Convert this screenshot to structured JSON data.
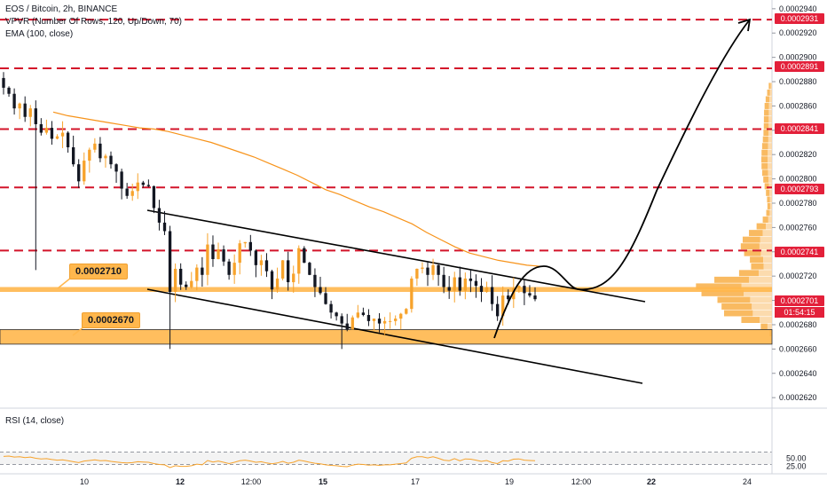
{
  "header": {
    "symbol_line": "EOS / Bitcoin, 2h, BINANCE",
    "vpvr_line": "VPVR (Number Of Rows, 120, Up/Down, 70)",
    "ema_line": "EMA (100, close)"
  },
  "labels": {
    "level_upper": "0.0002710",
    "level_lower": "0.0002670"
  },
  "rsi": {
    "legend": "RSI (14, close)",
    "ticks": [
      "50.00",
      "25.00"
    ]
  },
  "price_axis": {
    "ticks": [
      "0.0002940",
      "0.0002920",
      "0.0002900",
      "0.0002880",
      "0.0002860",
      "0.0002840",
      "0.0002820",
      "0.0002800",
      "0.0002780",
      "0.0002760",
      "0.0002740",
      "0.0002720",
      "0.0002700",
      "0.0002680",
      "0.0002660",
      "0.0002640",
      "0.0002620"
    ],
    "tags": [
      "0.0002931",
      "0.0002891",
      "0.0002841",
      "0.0002793",
      "0.0002741",
      "0.0002701"
    ],
    "countdown": "01:54:15"
  },
  "time_axis": {
    "ticks": [
      "10",
      "12",
      "12:00",
      "15",
      "17",
      "19",
      "12:00",
      "22",
      "24"
    ]
  },
  "colors": {
    "up": "#f7a32c",
    "down": "#131722",
    "ema": "#f7931a",
    "dashed": "#d3142a",
    "zone": "#ffb74d",
    "rsi": "#f7a32c",
    "tag": "#e3203a"
  },
  "chart_data": {
    "type": "candlestick",
    "title": "EOS / Bitcoin, 2h, BINANCE",
    "x_ticks": [
      "10",
      "12",
      "12:00",
      "15",
      "17",
      "19",
      "12:00",
      "22",
      "24"
    ],
    "ylim": [
      0.0002615,
      0.0002945
    ],
    "resistance_levels": [
      0.0002931,
      0.0002891,
      0.0002841,
      0.0002793,
      0.0002741
    ],
    "zones": [
      {
        "label": "0.0002710",
        "low": 0.0002707,
        "high": 0.0002711
      },
      {
        "label": "0.0002670",
        "low": 0.0002664,
        "high": 0.0002676
      }
    ],
    "last_price": 0.0002701,
    "close_series": [
      0.0002875,
      0.000287,
      0.0002858,
      0.0002862,
      0.0002851,
      0.0002858,
      0.0002845,
      0.0002838,
      0.0002842,
      0.0002833,
      0.0002835,
      0.0002838,
      0.0002826,
      0.0002812,
      0.0002798,
      0.0002815,
      0.0002824,
      0.0002829,
      0.0002817,
      0.0002819,
      0.0002812,
      0.0002806,
      0.0002792,
      0.0002786,
      0.000279,
      0.0002797,
      0.0002795,
      0.0002794,
      0.0002776,
      0.0002764,
      0.0002757,
      0.0002707,
      0.0002726,
      0.0002713,
      0.0002711,
      0.0002716,
      0.0002727,
      0.0002721,
      0.0002746,
      0.0002734,
      0.0002742,
      0.0002732,
      0.0002721,
      0.0002731,
      0.0002747,
      0.0002748,
      0.0002741,
      0.0002729,
      0.0002733,
      0.0002724,
      0.0002709,
      0.0002718,
      0.0002733,
      0.0002715,
      0.0002722,
      0.0002743,
      0.0002731,
      0.0002721,
      0.0002711,
      0.0002706,
      0.0002697,
      0.000269,
      0.0002687,
      0.0002681,
      0.0002676,
      0.0002686,
      0.000269,
      0.0002688,
      0.0002683,
      0.0002685,
      0.0002681,
      0.0002683,
      0.0002683,
      0.0002685,
      0.0002689,
      0.0002693,
      0.0002718,
      0.0002726,
      0.0002727,
      0.0002721,
      0.0002729,
      0.0002721,
      0.0002711,
      0.0002708,
      0.0002719,
      0.0002708,
      0.0002718,
      0.0002716,
      0.0002712,
      0.0002707,
      0.0002711,
      0.0002697,
      0.0002687,
      0.0002704,
      0.0002701,
      0.000271,
      0.0002712,
      0.0002706,
      0.0002704,
      0.0002701
    ],
    "ema_100": [
      0.0002855,
      0.0002852,
      0.000285,
      0.0002848,
      0.0002846,
      0.0002844,
      0.0002842,
      0.0002841,
      0.0002839,
      0.0002836,
      0.0002833,
      0.000283,
      0.0002826,
      0.0002822,
      0.0002818,
      0.0002813,
      0.0002808,
      0.0002803,
      0.0002797,
      0.0002791,
      0.0002787,
      0.0002782,
      0.0002777,
      0.0002773,
      0.0002768,
      0.0002763,
      0.0002756,
      0.000275,
      0.0002744,
      0.0002739,
      0.0002736,
      0.0002733,
      0.0002731,
      0.0002729,
      0.0002728
    ],
    "projection": "rise from ~0.0002690 to ~0.0002931",
    "rsi_series": [
      56,
      57,
      54,
      55,
      52,
      54,
      50,
      48,
      49,
      46,
      44,
      45,
      42,
      39,
      36,
      41,
      43,
      45,
      42,
      43,
      40,
      38,
      36,
      35,
      36,
      39,
      38,
      37,
      33,
      30,
      29,
      20,
      26,
      24,
      24,
      26,
      31,
      29,
      43,
      38,
      41,
      37,
      33,
      37,
      42,
      44,
      41,
      37,
      39,
      35,
      32,
      35,
      40,
      34,
      37,
      44,
      41,
      37,
      34,
      32,
      29,
      27,
      26,
      24,
      23,
      28,
      31,
      30,
      28,
      29,
      27,
      29,
      29,
      31,
      33,
      35,
      50,
      55,
      55,
      51,
      55,
      50,
      44,
      42,
      49,
      42,
      48,
      47,
      44,
      40,
      43,
      36,
      33,
      42,
      41,
      47,
      48,
      44,
      43,
      42
    ],
    "rsi_ticks": [
      "50.00",
      "25.00"
    ]
  }
}
